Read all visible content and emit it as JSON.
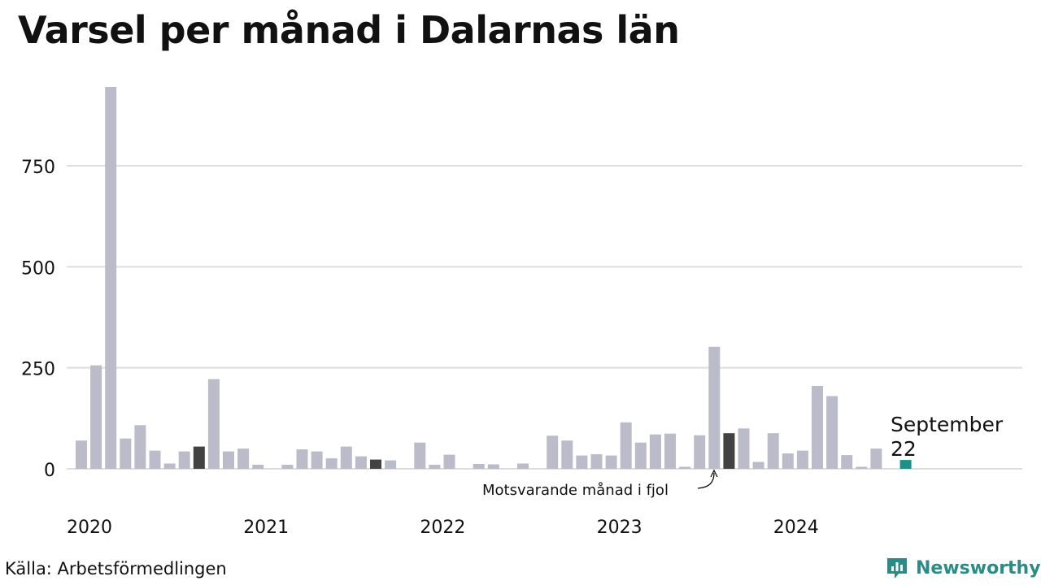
{
  "title": "Varsel per månad i Dalarnas län",
  "source": "Källa: Arbetsförmedlingen",
  "brand": {
    "name": "Newsworthy",
    "icon": "newsworthy-logo-icon"
  },
  "colors": {
    "bar": "#bcbbc9",
    "comparison": "#424242",
    "current": "#1f8f87",
    "grid": "#dddddd",
    "text": "#111111",
    "brand": "#2b8c87"
  },
  "annotations": {
    "current_month_label": "September",
    "current_value_label": "22",
    "comparison_label": "Motsvarande månad i fjol"
  },
  "chart_data": {
    "type": "bar",
    "title": "Varsel per månad i Dalarnas län",
    "xlabel": "",
    "ylabel": "",
    "ylim": [
      0,
      950
    ],
    "yticks": [
      0,
      250,
      500,
      750
    ],
    "year_labels": [
      "2020",
      "2021",
      "2022",
      "2023",
      "2024"
    ],
    "grid": "horizontal",
    "categories": [
      "2020-01",
      "2020-02",
      "2020-03",
      "2020-04",
      "2020-05",
      "2020-06",
      "2020-07",
      "2020-08",
      "2020-09",
      "2020-10",
      "2020-11",
      "2020-12",
      "2021-01",
      "2021-02",
      "2021-03",
      "2021-04",
      "2021-05",
      "2021-06",
      "2021-07",
      "2021-08",
      "2021-09",
      "2021-10",
      "2021-11",
      "2021-12",
      "2022-01",
      "2022-02",
      "2022-03",
      "2022-04",
      "2022-05",
      "2022-06",
      "2022-07",
      "2022-08",
      "2022-09",
      "2022-10",
      "2022-11",
      "2022-12",
      "2023-01",
      "2023-02",
      "2023-03",
      "2023-04",
      "2023-05",
      "2023-06",
      "2023-07",
      "2023-08",
      "2023-09",
      "2023-10",
      "2023-11",
      "2023-12",
      "2024-01",
      "2024-02",
      "2024-03",
      "2024-04",
      "2024-05",
      "2024-06",
      "2024-07",
      "2024-08",
      "2024-09"
    ],
    "values": [
      70,
      256,
      945,
      75,
      108,
      45,
      13,
      43,
      55,
      222,
      43,
      50,
      10,
      0,
      10,
      48,
      43,
      26,
      55,
      31,
      23,
      21,
      0,
      65,
      10,
      35,
      0,
      12,
      11,
      0,
      13,
      0,
      82,
      70,
      33,
      36,
      33,
      115,
      65,
      85,
      87,
      5,
      83,
      302,
      88,
      100,
      17,
      88,
      38,
      45,
      205,
      180,
      34,
      5,
      50,
      0,
      22
    ],
    "highlights": {
      "comparison": [
        "2020-09",
        "2021-09",
        "2023-09"
      ],
      "current": "2024-09"
    }
  }
}
